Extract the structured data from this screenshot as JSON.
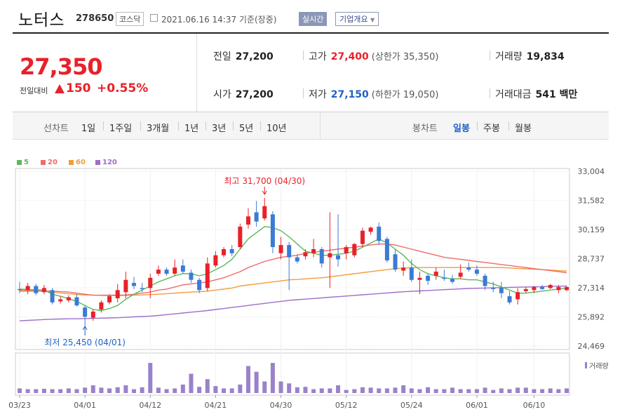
{
  "header": {
    "stock_name": "노터스",
    "stock_code": "278650",
    "market": "코스닥",
    "timestamp": "2021.06.16 14:37  기준(장중)",
    "live_label": "실시간",
    "company_info_label": "기업개요"
  },
  "quote": {
    "price": "27,350",
    "change_label": "전일대비",
    "change": "150",
    "change_pct": "+0.55%",
    "prev_close_label": "전일",
    "prev_close": "27,200",
    "open_label": "시가",
    "open": "27,200",
    "high_label": "고가",
    "high": "27,400",
    "upper_limit": "(상한가 35,350)",
    "low_label": "저가",
    "low": "27,150",
    "lower_limit": "(하한가 19,050)",
    "volume_label": "거래량",
    "volume": "19,834",
    "value_label": "거래대금",
    "value": "541 백만"
  },
  "period_bar": {
    "line_label": "선차트",
    "line_periods": [
      "1일",
      "1주일",
      "3개월",
      "1년",
      "3년",
      "5년",
      "10년"
    ],
    "candle_label": "봉차트",
    "candle_periods": [
      "일봉",
      "주봉",
      "월봉"
    ],
    "selected_candle": "일봉"
  },
  "colors": {
    "up": "#e8212a",
    "down": "#3a7bd5",
    "ma5": "#5cb85c",
    "ma20": "#ef6b6b",
    "ma60": "#f29c3c",
    "ma120": "#9b6fc9",
    "volume": "#9a82c9"
  },
  "chart_data": {
    "type": "candlestick",
    "legend": [
      {
        "name": "5",
        "color": "#5cb85c"
      },
      {
        "name": "20",
        "color": "#ef6b6b"
      },
      {
        "name": "60",
        "color": "#f29c3c"
      },
      {
        "name": "120",
        "color": "#9b6fc9"
      }
    ],
    "y_ticks": [
      "33,004",
      "31,582",
      "30,159",
      "28,737",
      "27,314",
      "25,892",
      "24,469"
    ],
    "ylim": [
      24469,
      33004
    ],
    "x_ticks": [
      "03/23",
      "04/01",
      "04/12",
      "04/21",
      "04/30",
      "05/12",
      "05/24",
      "06/01",
      "06/10"
    ],
    "high_annotation": "최고 31,700 (04/30)",
    "low_annotation": "최저 25,450 (04/01)",
    "volume_label": "거래량",
    "candles": [
      {
        "o": 27250,
        "h": 27600,
        "l": 27050,
        "c": 27200
      },
      {
        "o": 27200,
        "h": 27550,
        "l": 27000,
        "c": 27400
      },
      {
        "o": 27400,
        "h": 27500,
        "l": 26950,
        "c": 27050
      },
      {
        "o": 27100,
        "h": 27450,
        "l": 27000,
        "c": 27300
      },
      {
        "o": 27200,
        "h": 27300,
        "l": 26500,
        "c": 26600
      },
      {
        "o": 26650,
        "h": 26900,
        "l": 26550,
        "c": 26750
      },
      {
        "o": 26700,
        "h": 26950,
        "l": 26600,
        "c": 26850
      },
      {
        "o": 26850,
        "h": 27000,
        "l": 26400,
        "c": 26450
      },
      {
        "o": 26350,
        "h": 26450,
        "l": 25450,
        "c": 25900
      },
      {
        "o": 25850,
        "h": 26250,
        "l": 25700,
        "c": 26150
      },
      {
        "o": 26250,
        "h": 26700,
        "l": 26100,
        "c": 26600
      },
      {
        "o": 26600,
        "h": 27000,
        "l": 26500,
        "c": 26900
      },
      {
        "o": 26800,
        "h": 27500,
        "l": 26600,
        "c": 27200
      },
      {
        "o": 27100,
        "h": 28100,
        "l": 26800,
        "c": 27700
      },
      {
        "o": 27550,
        "h": 27850,
        "l": 27250,
        "c": 27400
      },
      {
        "o": 27300,
        "h": 27550,
        "l": 27100,
        "c": 27250
      },
      {
        "o": 27300,
        "h": 28000,
        "l": 26800,
        "c": 27800
      },
      {
        "o": 28000,
        "h": 28400,
        "l": 27900,
        "c": 28200
      },
      {
        "o": 28200,
        "h": 28300,
        "l": 27900,
        "c": 28000
      },
      {
        "o": 28000,
        "h": 28700,
        "l": 27900,
        "c": 28300
      },
      {
        "o": 28400,
        "h": 28700,
        "l": 28000,
        "c": 28100
      },
      {
        "o": 28050,
        "h": 28200,
        "l": 27550,
        "c": 27700
      },
      {
        "o": 27700,
        "h": 27800,
        "l": 27050,
        "c": 27200
      },
      {
        "o": 27300,
        "h": 28800,
        "l": 27150,
        "c": 28500
      },
      {
        "o": 28400,
        "h": 29100,
        "l": 28300,
        "c": 28900
      },
      {
        "o": 28900,
        "h": 29300,
        "l": 28800,
        "c": 29200
      },
      {
        "o": 29200,
        "h": 29400,
        "l": 28850,
        "c": 29000
      },
      {
        "o": 29300,
        "h": 30450,
        "l": 29200,
        "c": 30300
      },
      {
        "o": 30400,
        "h": 31200,
        "l": 30200,
        "c": 30800
      },
      {
        "o": 31000,
        "h": 31550,
        "l": 30300,
        "c": 30550
      },
      {
        "o": 30700,
        "h": 31700,
        "l": 30600,
        "c": 31300
      },
      {
        "o": 30900,
        "h": 31050,
        "l": 29000,
        "c": 29300
      },
      {
        "o": 29000,
        "h": 29800,
        "l": 28700,
        "c": 29400
      },
      {
        "o": 29400,
        "h": 29550,
        "l": 27200,
        "c": 28800
      },
      {
        "o": 28800,
        "h": 28950,
        "l": 28500,
        "c": 28600
      },
      {
        "o": 28850,
        "h": 29200,
        "l": 28700,
        "c": 29050
      },
      {
        "o": 29000,
        "h": 29700,
        "l": 28800,
        "c": 29200
      },
      {
        "o": 29200,
        "h": 29300,
        "l": 28300,
        "c": 28500
      },
      {
        "o": 28800,
        "h": 31000,
        "l": 27300,
        "c": 29000
      },
      {
        "o": 28900,
        "h": 30900,
        "l": 28350,
        "c": 28700
      },
      {
        "o": 29000,
        "h": 29400,
        "l": 28700,
        "c": 29300
      },
      {
        "o": 28900,
        "h": 29500,
        "l": 28800,
        "c": 29450
      },
      {
        "o": 29450,
        "h": 30250,
        "l": 29300,
        "c": 30100
      },
      {
        "o": 30050,
        "h": 30300,
        "l": 29900,
        "c": 30250
      },
      {
        "o": 30300,
        "h": 30500,
        "l": 29400,
        "c": 29600
      },
      {
        "o": 29700,
        "h": 29800,
        "l": 28550,
        "c": 28650
      },
      {
        "o": 28950,
        "h": 29200,
        "l": 28100,
        "c": 28200
      },
      {
        "o": 28150,
        "h": 28600,
        "l": 27900,
        "c": 28300
      },
      {
        "o": 28300,
        "h": 28700,
        "l": 27600,
        "c": 27700
      },
      {
        "o": 27700,
        "h": 28100,
        "l": 27000,
        "c": 27800
      },
      {
        "o": 27900,
        "h": 28000,
        "l": 27450,
        "c": 27650
      },
      {
        "o": 27900,
        "h": 28300,
        "l": 27700,
        "c": 28100
      },
      {
        "o": 27800,
        "h": 28200,
        "l": 27650,
        "c": 27750
      },
      {
        "o": 27750,
        "h": 27950,
        "l": 27500,
        "c": 27600
      },
      {
        "o": 27850,
        "h": 28450,
        "l": 27750,
        "c": 28050
      },
      {
        "o": 28300,
        "h": 28550,
        "l": 28100,
        "c": 28200
      },
      {
        "o": 28200,
        "h": 28400,
        "l": 27900,
        "c": 28000
      },
      {
        "o": 27900,
        "h": 28000,
        "l": 27200,
        "c": 27400
      },
      {
        "o": 27300,
        "h": 27600,
        "l": 27100,
        "c": 27250
      },
      {
        "o": 27300,
        "h": 27600,
        "l": 26800,
        "c": 27050
      },
      {
        "o": 26900,
        "h": 27150,
        "l": 26500,
        "c": 26600
      },
      {
        "o": 26750,
        "h": 27300,
        "l": 26500,
        "c": 27100
      },
      {
        "o": 27150,
        "h": 27350,
        "l": 27050,
        "c": 27250
      },
      {
        "o": 27200,
        "h": 27400,
        "l": 27050,
        "c": 27350
      },
      {
        "o": 27350,
        "h": 27450,
        "l": 27200,
        "c": 27250
      },
      {
        "o": 27300,
        "h": 27500,
        "l": 27250,
        "c": 27450
      },
      {
        "o": 27200,
        "h": 27450,
        "l": 27050,
        "c": 27350
      },
      {
        "o": 27200,
        "h": 27400,
        "l": 27150,
        "c": 27350
      }
    ],
    "volume_ratios": [
      0.12,
      0.1,
      0.1,
      0.11,
      0.1,
      0.1,
      0.12,
      0.1,
      0.14,
      0.2,
      0.14,
      0.12,
      0.15,
      0.2,
      0.1,
      0.15,
      0.78,
      0.14,
      0.1,
      0.12,
      0.22,
      0.5,
      0.16,
      0.36,
      0.18,
      0.12,
      0.12,
      0.22,
      0.7,
      0.55,
      0.3,
      0.78,
      0.3,
      0.25,
      0.15,
      0.16,
      0.1,
      0.12,
      0.12,
      0.2,
      0.08,
      0.1,
      0.15,
      0.14,
      0.12,
      0.12,
      0.14,
      0.2,
      0.12,
      0.1,
      0.15,
      0.1,
      0.1,
      0.14,
      0.1,
      0.1,
      0.1,
      0.14,
      0.08,
      0.12,
      0.1,
      0.14,
      0.14,
      0.1,
      0.1,
      0.12,
      0.1,
      0.12
    ],
    "ma5": [
      27250,
      27230,
      27210,
      27200,
      27000,
      26900,
      26780,
      26650,
      26450,
      26250,
      26200,
      26300,
      26450,
      26750,
      27000,
      27200,
      27400,
      27600,
      27750,
      27900,
      28000,
      28000,
      27900,
      28000,
      28200,
      28400,
      28700,
      29200,
      29700,
      30000,
      30300,
      30250,
      30100,
      29800,
      29450,
      29100,
      29000,
      28900,
      28900,
      28950,
      29000,
      29100,
      29300,
      29500,
      29700,
      29500,
      29200,
      28900,
      28500,
      28200,
      28000,
      27900,
      27800,
      27750,
      27750,
      27700,
      27700,
      27600,
      27500,
      27350,
      27200,
      27050,
      27050,
      27100,
      27150,
      27200,
      27250,
      27300
    ],
    "ma20": [
      27150,
      27150,
      27150,
      27160,
      27150,
      27130,
      27100,
      27050,
      27000,
      26950,
      26950,
      26950,
      26950,
      26960,
      27000,
      27050,
      27100,
      27200,
      27250,
      27350,
      27450,
      27500,
      27550,
      27600,
      27700,
      27800,
      27950,
      28100,
      28300,
      28450,
      28600,
      28700,
      28800,
      28850,
      28900,
      29000,
      29050,
      29100,
      29150,
      29200,
      29250,
      29300,
      29350,
      29400,
      29450,
      29450,
      29400,
      29300,
      29200,
      29100,
      29000,
      28900,
      28800,
      28750,
      28700,
      28650,
      28600,
      28550,
      28500,
      28450,
      28400,
      28350,
      28300,
      28250,
      28200,
      28150,
      28100,
      28050
    ],
    "ma60": [
      27200,
      27180,
      27160,
      27140,
      27100,
      27060,
      27020,
      26990,
      26960,
      26950,
      26940,
      26930,
      26930,
      26940,
      26950,
      26960,
      26980,
      27000,
      27020,
      27050,
      27080,
      27100,
      27120,
      27150,
      27200,
      27250,
      27300,
      27400,
      27450,
      27500,
      27550,
      27600,
      27650,
      27700,
      27720,
      27750,
      27780,
      27800,
      27850,
      27900,
      27950,
      28000,
      28050,
      28100,
      28150,
      28200,
      28250,
      28270,
      28290,
      28300,
      28300,
      28300,
      28300,
      28300,
      28300,
      28300,
      28300,
      28300,
      28300,
      28300,
      28280,
      28260,
      28240,
      28220,
      28200,
      28180,
      28150,
      28130
    ],
    "ma120": [
      25700,
      25720,
      25740,
      25760,
      25780,
      25790,
      25800,
      25800,
      25810,
      25820,
      25830,
      25840,
      25850,
      25870,
      25890,
      25910,
      25930,
      25960,
      26000,
      26040,
      26080,
      26120,
      26160,
      26200,
      26250,
      26300,
      26350,
      26400,
      26450,
      26500,
      26550,
      26600,
      26650,
      26700,
      26730,
      26760,
      26790,
      26820,
      26850,
      26880,
      26910,
      26940,
      26970,
      27000,
      27030,
      27060,
      27090,
      27120,
      27140,
      27160,
      27180,
      27200,
      27220,
      27240,
      27260,
      27280,
      27290,
      27300,
      27310,
      27320,
      27330,
      27340,
      27350,
      27360,
      27370,
      27380,
      27390,
      27400
    ]
  }
}
